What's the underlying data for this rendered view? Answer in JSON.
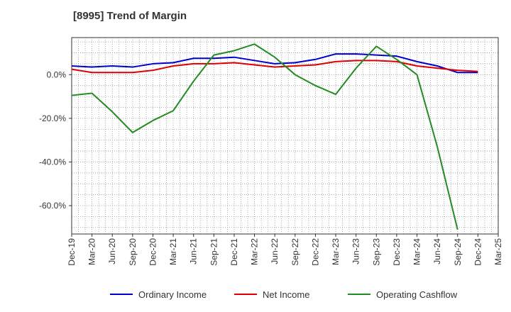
{
  "chart_data": {
    "type": "line",
    "title": "[8995]  Trend of Margin",
    "xlabel": "",
    "ylabel": "",
    "x": [
      "Dec-19",
      "Mar-20",
      "Jun-20",
      "Sep-20",
      "Dec-20",
      "Mar-21",
      "Jun-21",
      "Sep-21",
      "Dec-21",
      "Mar-22",
      "Jun-22",
      "Sep-22",
      "Dec-22",
      "Mar-23",
      "Jun-23",
      "Sep-23",
      "Dec-23",
      "Mar-24",
      "Jun-24",
      "Sep-24",
      "Dec-24",
      "Mar-25"
    ],
    "ylim": [
      -73,
      17
    ],
    "yticks": [
      0,
      -20,
      -40,
      -60
    ],
    "ytick_labels": [
      "0.0%",
      "-20.0%",
      "-40.0%",
      "-60.0%"
    ],
    "grid": true,
    "legend_position": "bottom",
    "series": [
      {
        "name": "Ordinary Income",
        "color": "#0000cc",
        "values": [
          4.0,
          3.5,
          4.0,
          3.5,
          5.0,
          5.5,
          7.5,
          7.5,
          8.0,
          6.5,
          5.0,
          5.5,
          7.0,
          9.5,
          9.5,
          9.0,
          8.5,
          6.0,
          4.0,
          1.0,
          1.0,
          null
        ]
      },
      {
        "name": "Net Income",
        "color": "#dd0000",
        "values": [
          2.5,
          1.0,
          1.0,
          1.0,
          2.0,
          4.0,
          5.0,
          5.0,
          5.5,
          4.5,
          3.5,
          4.0,
          4.5,
          6.0,
          6.5,
          6.5,
          6.0,
          4.0,
          3.0,
          2.0,
          1.5,
          null
        ]
      },
      {
        "name": "Operating Cashflow",
        "color": "#228b22",
        "values": [
          -9.5,
          -8.5,
          -17.0,
          -26.5,
          -21.0,
          -16.5,
          -3.0,
          9.0,
          11.0,
          14.0,
          8.0,
          0.0,
          -5.0,
          -9.0,
          3.0,
          13.0,
          7.0,
          0.0,
          -33.0,
          -71.0,
          null,
          null
        ]
      }
    ]
  }
}
